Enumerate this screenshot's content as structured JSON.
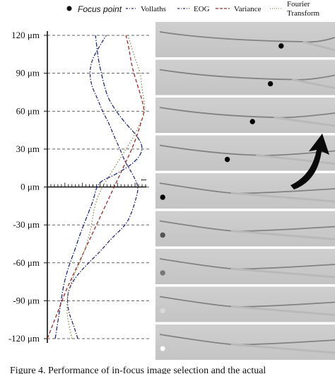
{
  "chart_data": {
    "type": "line",
    "legend": [
      {
        "label": "Focus point",
        "marker": "dot",
        "color": "#111111"
      },
      {
        "label": "Vollaths",
        "style": "dashdot",
        "color": "#2a2a7a"
      },
      {
        "label": "EOG",
        "style": "dashdot",
        "color": "#1c2a86"
      },
      {
        "label": "Variance",
        "style": "dashed",
        "color": "#a02828"
      },
      {
        "label": "Fourier Transform",
        "style": "dotted",
        "color": "#8a8a4a"
      }
    ],
    "x_tick_label": "1",
    "y_unit": "μm",
    "y_ticks": [
      120,
      90,
      60,
      30,
      0,
      -30,
      -60,
      -90,
      -120
    ],
    "y_tick_labels": [
      "120 μm",
      "90 μm",
      "60 μm",
      "30 μm",
      "0 μm",
      "-30 μm",
      "-60 μm",
      "-90 μm",
      "-120 μm"
    ],
    "ylim": [
      -120,
      120
    ],
    "xlim": [
      0,
      1
    ],
    "series": [
      {
        "name": "Vollaths",
        "color": "#2a2a7a",
        "dash": "5,2,1.5,2",
        "x": [
          0.31,
          0.27,
          0.22,
          0.2,
          0.22,
          0.3,
          0.42,
          0.55,
          0.66,
          0.8,
          0.86,
          0.9,
          0.93,
          0.87,
          0.79,
          0.74,
          0.68,
          0.63,
          0.56,
          0.51,
          0.45,
          0.43,
          0.45,
          0.52,
          0.6
        ],
        "y": [
          -120,
          -110,
          -100,
          -90,
          -80,
          -70,
          -60,
          -50,
          -40,
          -30,
          -20,
          -10,
          0,
          10,
          20,
          30,
          40,
          50,
          60,
          70,
          80,
          90,
          100,
          110,
          120
        ]
      },
      {
        "name": "EOG",
        "color": "#1c2a86",
        "dash": "6,2,1.5,2",
        "x": [
          0.08,
          0.1,
          0.12,
          0.14,
          0.16,
          0.19,
          0.23,
          0.28,
          0.32,
          0.37,
          0.42,
          0.47,
          0.5,
          0.55,
          0.7,
          0.9,
          0.98,
          0.92,
          0.8,
          0.7,
          0.62,
          0.58,
          0.55,
          0.52,
          0.49
        ],
        "y": [
          -120,
          -110,
          -100,
          -90,
          -80,
          -70,
          -60,
          -50,
          -40,
          -30,
          -20,
          -10,
          0,
          5,
          10,
          20,
          30,
          40,
          50,
          60,
          70,
          80,
          90,
          100,
          120
        ]
      },
      {
        "name": "Variance",
        "color": "#a02828",
        "dash": "5,3",
        "x": [
          0.0,
          0.05,
          0.1,
          0.15,
          0.2,
          0.26,
          0.32,
          0.38,
          0.44,
          0.5,
          0.56,
          0.62,
          0.68,
          0.74,
          0.8,
          0.86,
          0.91,
          0.95,
          0.99,
          0.96,
          0.92,
          0.88,
          0.85,
          0.83,
          0.8
        ],
        "y": [
          -120,
          -110,
          -100,
          -90,
          -80,
          -70,
          -60,
          -50,
          -40,
          -30,
          -20,
          -10,
          0,
          10,
          20,
          30,
          40,
          50,
          60,
          70,
          80,
          90,
          100,
          110,
          120
        ]
      },
      {
        "name": "Fourier Transform",
        "color": "#8a8a4a",
        "dash": "1.5,2.5",
        "x": [
          0.25,
          0.22,
          0.2,
          0.2,
          0.22,
          0.27,
          0.33,
          0.38,
          0.42,
          0.45,
          0.47,
          0.5,
          0.56,
          0.64,
          0.72,
          0.8,
          0.88,
          0.94,
          1.0,
          0.98,
          0.96,
          0.95,
          0.9,
          0.86,
          0.82
        ],
        "y": [
          -120,
          -110,
          -100,
          -90,
          -80,
          -70,
          -60,
          -50,
          -40,
          -30,
          -20,
          -10,
          0,
          10,
          20,
          30,
          40,
          50,
          60,
          70,
          80,
          90,
          100,
          110,
          120
        ]
      }
    ],
    "frames": [
      {
        "z": 120,
        "tip": 0.82,
        "focus_dot": {
          "x": 0.7,
          "color": "#000000"
        }
      },
      {
        "z": 90,
        "tip": 0.76,
        "focus_dot": {
          "x": 0.64,
          "color": "#000000"
        }
      },
      {
        "z": 60,
        "tip": 0.66,
        "focus_dot": {
          "x": 0.54,
          "color": "#000000"
        }
      },
      {
        "z": 30,
        "tip": 0.56,
        "focus_dot": {
          "x": 0.4,
          "color": "#000000"
        }
      },
      {
        "z": 0,
        "tip": 0.42,
        "focus_dot": {
          "x": 0.04,
          "color": "#000000"
        }
      },
      {
        "z": -30,
        "tip": 0.42,
        "focus_dot": {
          "x": 0.04,
          "color": "#555555"
        }
      },
      {
        "z": -60,
        "tip": 0.42,
        "focus_dot": {
          "x": 0.04,
          "color": "#777777"
        }
      },
      {
        "z": -90,
        "tip": 0.42,
        "focus_dot": {
          "x": 0.04,
          "color": "#d8d8d8"
        }
      },
      {
        "z": -120,
        "tip": 0.42,
        "focus_dot": {
          "x": 0.04,
          "color": "#ffffff"
        }
      }
    ]
  },
  "caption": "Figure 4.  Performance of in-focus image selection and the actual"
}
